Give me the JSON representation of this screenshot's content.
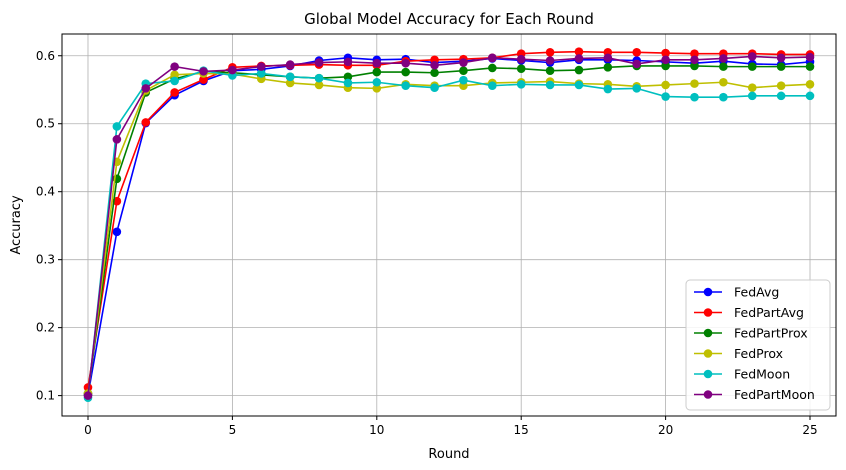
{
  "chart_data": {
    "type": "line",
    "title": "Global Model Accuracy for Each Round",
    "xlabel": "Round",
    "ylabel": "Accuracy",
    "xlim": [
      -0.9,
      25.9
    ],
    "ylim": [
      0.07,
      0.632
    ],
    "xticks": [
      0,
      5,
      10,
      15,
      20,
      25
    ],
    "yticks": [
      0.1,
      0.2,
      0.3,
      0.4,
      0.5,
      0.6
    ],
    "ytick_labels": [
      "0.1",
      "0.2",
      "0.3",
      "0.4",
      "0.5",
      "0.6"
    ],
    "grid": true,
    "legend_position": "lower-right",
    "x": [
      0,
      1,
      2,
      3,
      4,
      5,
      6,
      7,
      8,
      9,
      10,
      11,
      12,
      13,
      14,
      15,
      16,
      17,
      18,
      19,
      20,
      21,
      22,
      23,
      24,
      25
    ],
    "series": [
      {
        "name": "FedAvg",
        "color": "#0000ff",
        "values": [
          0.101,
          0.341,
          0.501,
          0.542,
          0.563,
          0.578,
          0.58,
          0.585,
          0.593,
          0.597,
          0.594,
          0.595,
          0.59,
          0.592,
          0.596,
          0.593,
          0.59,
          0.594,
          0.594,
          0.593,
          0.591,
          0.589,
          0.592,
          0.588,
          0.587,
          0.591
        ]
      },
      {
        "name": "FedPartAvg",
        "color": "#ff0000",
        "values": [
          0.112,
          0.386,
          0.502,
          0.546,
          0.565,
          0.583,
          0.585,
          0.586,
          0.587,
          0.586,
          0.586,
          0.592,
          0.594,
          0.595,
          0.597,
          0.603,
          0.605,
          0.606,
          0.605,
          0.605,
          0.604,
          0.603,
          0.603,
          0.603,
          0.602,
          0.602
        ]
      },
      {
        "name": "FedPartProx",
        "color": "#008000",
        "values": [
          0.103,
          0.419,
          0.546,
          0.566,
          0.577,
          0.575,
          0.572,
          0.569,
          0.567,
          0.569,
          0.576,
          0.576,
          0.575,
          0.578,
          0.582,
          0.581,
          0.578,
          0.579,
          0.583,
          0.585,
          0.585,
          0.585,
          0.584,
          0.584,
          0.584,
          0.584
        ]
      },
      {
        "name": "FedProx",
        "color": "#bfbf00",
        "values": [
          0.103,
          0.444,
          0.549,
          0.572,
          0.574,
          0.573,
          0.566,
          0.56,
          0.557,
          0.553,
          0.552,
          0.558,
          0.556,
          0.556,
          0.56,
          0.561,
          0.562,
          0.559,
          0.558,
          0.555,
          0.557,
          0.559,
          0.561,
          0.553,
          0.556,
          0.558
        ]
      },
      {
        "name": "FedMoon",
        "color": "#00bfbf",
        "values": [
          0.097,
          0.496,
          0.559,
          0.563,
          0.578,
          0.571,
          0.574,
          0.569,
          0.567,
          0.56,
          0.561,
          0.556,
          0.553,
          0.564,
          0.556,
          0.558,
          0.557,
          0.557,
          0.551,
          0.552,
          0.54,
          0.539,
          0.539,
          0.541,
          0.541,
          0.541
        ]
      },
      {
        "name": "FedPartMoon",
        "color": "#800080",
        "values": [
          0.1,
          0.477,
          0.552,
          0.584,
          0.577,
          0.579,
          0.584,
          0.587,
          0.59,
          0.591,
          0.589,
          0.589,
          0.586,
          0.59,
          0.597,
          0.595,
          0.593,
          0.596,
          0.597,
          0.588,
          0.594,
          0.594,
          0.596,
          0.599,
          0.597,
          0.598
        ]
      }
    ]
  }
}
